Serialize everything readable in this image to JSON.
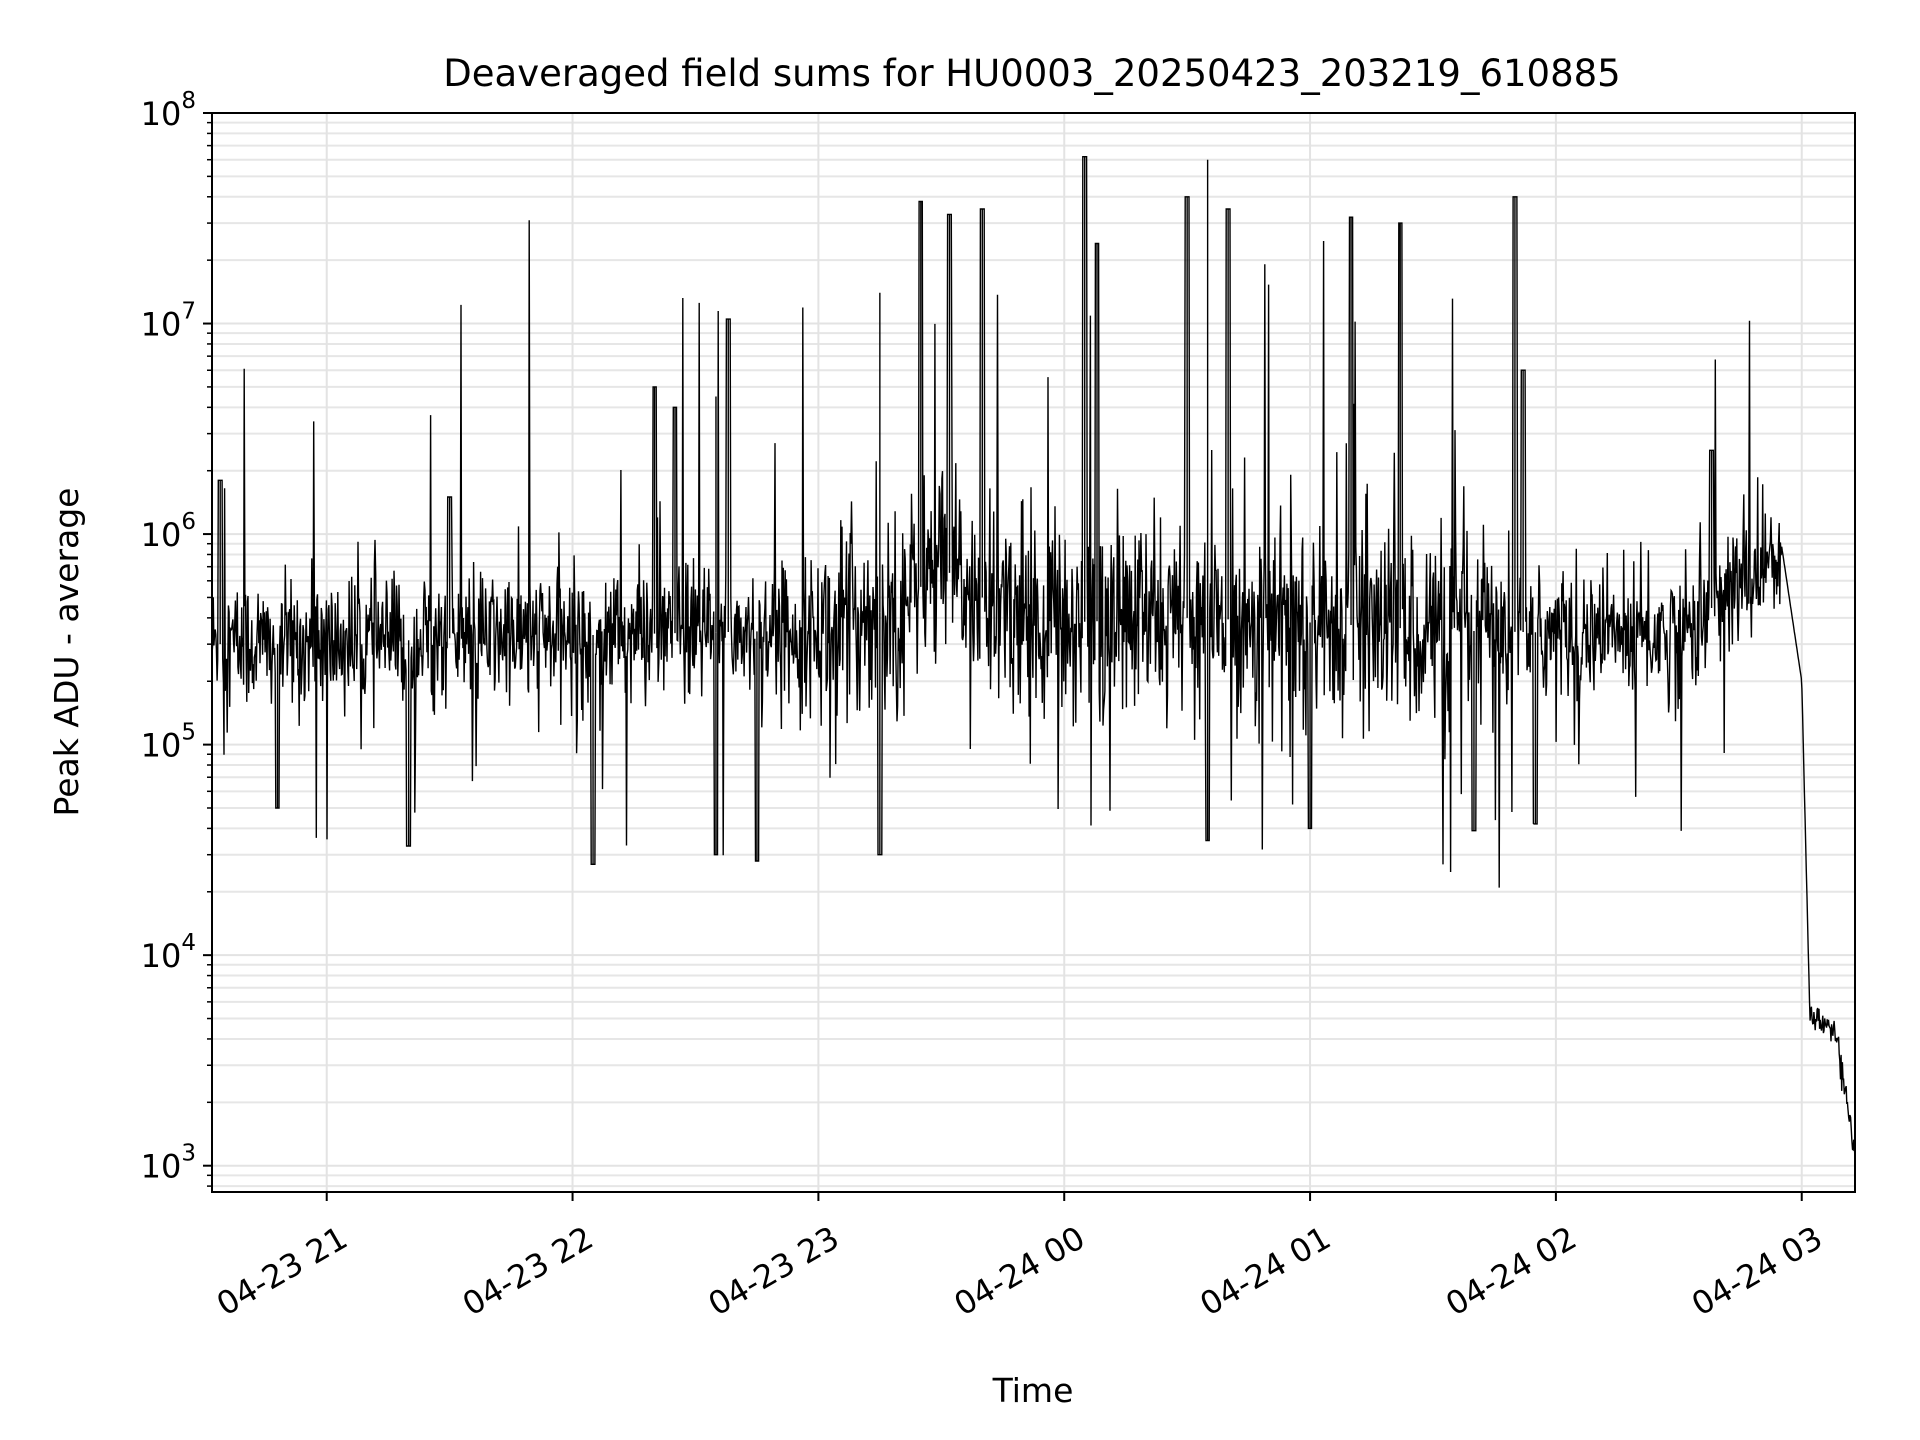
{
  "chart_data": {
    "type": "line",
    "title": "Deaveraged field sums for HU0003_20250423_203219_610885",
    "xlabel": "Time",
    "ylabel": "Peak ADU - average",
    "yscale": "log",
    "ylim": [
      750,
      100000000
    ],
    "xlim": [
      "04-23 20:32",
      "04-24 03:13"
    ],
    "x_ticks": [
      "04-23 21",
      "04-23 22",
      "04-23 23",
      "04-24 00",
      "04-24 01",
      "04-24 02",
      "04-24 03"
    ],
    "y_ticks": [
      {
        "base": "10",
        "exp": "3"
      },
      {
        "base": "10",
        "exp": "4"
      },
      {
        "base": "10",
        "exp": "5"
      },
      {
        "base": "10",
        "exp": "6"
      },
      {
        "base": "10",
        "exp": "7"
      },
      {
        "base": "10",
        "exp": "8"
      }
    ],
    "grid": true,
    "line_color": "#000000",
    "series": [
      {
        "x": [
          "04-23 20:32",
          "04-23 21:00",
          "04-23 21:30",
          "04-23 22:00",
          "04-23 22:30",
          "04-23 23:00",
          "04-23 23:20",
          "04-23 23:30",
          "04-23 23:40",
          "04-24 00:00",
          "04-24 00:30",
          "04-24 01:00",
          "04-24 01:30",
          "04-24 02:00",
          "04-24 02:30",
          "04-24 02:50",
          "04-24 02:55",
          "04-24 03:00",
          "04-24 03:02",
          "04-24 03:08",
          "04-24 03:13"
        ],
        "y": [
          300000,
          300000,
          320000,
          330000,
          340000,
          350000,
          450000,
          700000,
          500000,
          380000,
          400000,
          380000,
          350000,
          340000,
          330000,
          700000,
          900000,
          200000,
          5000,
          4500,
          1200
        ]
      }
    ],
    "spikes": [
      {
        "x": "04-23 20:34",
        "y": 1800000
      },
      {
        "x": "04-23 21:30",
        "y": 1500000
      },
      {
        "x": "04-23 22:20",
        "y": 5000000
      },
      {
        "x": "04-23 22:25",
        "y": 4000000
      },
      {
        "x": "04-23 22:35",
        "y": 4500000
      },
      {
        "x": "04-23 22:38",
        "y": 10500000
      },
      {
        "x": "04-23 23:15",
        "y": 14000000
      },
      {
        "x": "04-23 23:25",
        "y": 38000000
      },
      {
        "x": "04-23 23:32",
        "y": 33000000
      },
      {
        "x": "04-23 23:40",
        "y": 35000000
      },
      {
        "x": "04-24 00:05",
        "y": 62000000
      },
      {
        "x": "04-24 00:08",
        "y": 24000000
      },
      {
        "x": "04-24 00:30",
        "y": 40000000
      },
      {
        "x": "04-24 00:35",
        "y": 60000000
      },
      {
        "x": "04-24 00:40",
        "y": 35000000
      },
      {
        "x": "04-24 01:10",
        "y": 32000000
      },
      {
        "x": "04-24 01:22",
        "y": 30000000
      },
      {
        "x": "04-24 01:50",
        "y": 40000000
      },
      {
        "x": "04-24 01:52",
        "y": 6000000
      },
      {
        "x": "04-24 02:38",
        "y": 2500000
      }
    ],
    "dips": [
      {
        "x": "04-23 20:48",
        "y": 50000
      },
      {
        "x": "04-23 21:20",
        "y": 33000
      },
      {
        "x": "04-23 22:05",
        "y": 27000
      },
      {
        "x": "04-23 22:35",
        "y": 30000
      },
      {
        "x": "04-23 22:45",
        "y": 28000
      },
      {
        "x": "04-23 23:15",
        "y": 30000
      },
      {
        "x": "04-24 00:35",
        "y": 35000
      },
      {
        "x": "04-24 01:00",
        "y": 40000
      },
      {
        "x": "04-24 01:40",
        "y": 39000
      },
      {
        "x": "04-24 01:55",
        "y": 42000
      }
    ]
  }
}
